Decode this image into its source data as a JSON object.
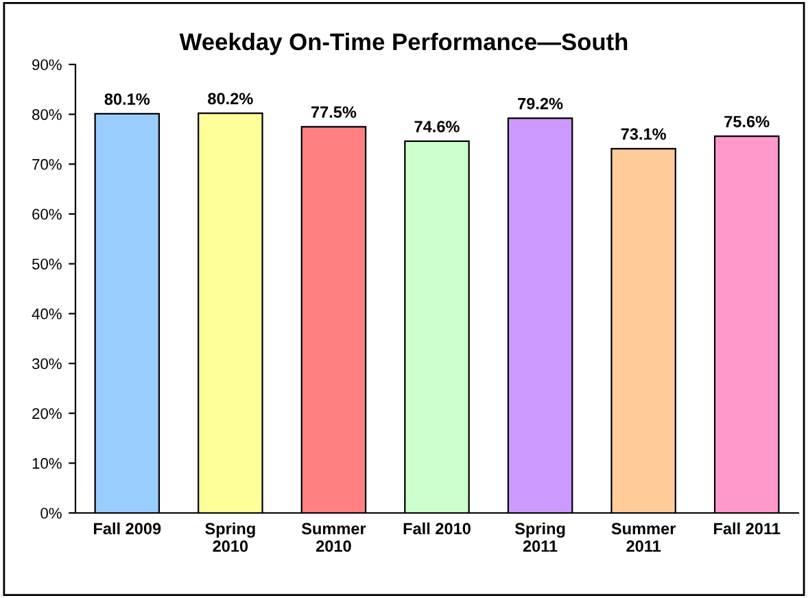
{
  "chart_data": {
    "type": "bar",
    "title": "Weekday On-Time Performance—South",
    "categories": [
      "Fall 2009",
      "Spring\n2010",
      "Summer\n2010",
      "Fall 2010",
      "Spring\n2011",
      "Summer\n2011",
      "Fall 2011"
    ],
    "values": [
      80.1,
      80.2,
      77.5,
      74.6,
      79.2,
      73.1,
      75.6
    ],
    "colors": [
      "#99ccff",
      "#ffff99",
      "#ff8080",
      "#ccffcc",
      "#cc99ff",
      "#ffcc99",
      "#ff99cc"
    ],
    "value_labels": [
      "80.1%",
      "80.2%",
      "77.5%",
      "74.6%",
      "79.2%",
      "73.1%",
      "75.6%"
    ],
    "ylim": [
      0,
      90
    ],
    "yticks": [
      {
        "value": 0,
        "label": "0%"
      },
      {
        "value": 10,
        "label": "10%"
      },
      {
        "value": 20,
        "label": "20%"
      },
      {
        "value": 30,
        "label": "30%"
      },
      {
        "value": 40,
        "label": "40%"
      },
      {
        "value": 50,
        "label": "50%"
      },
      {
        "value": 60,
        "label": "60%"
      },
      {
        "value": 70,
        "label": "70%"
      },
      {
        "value": 80,
        "label": "80%"
      },
      {
        "value": 90,
        "label": "90%"
      }
    ],
    "grid": false,
    "legend": false
  }
}
